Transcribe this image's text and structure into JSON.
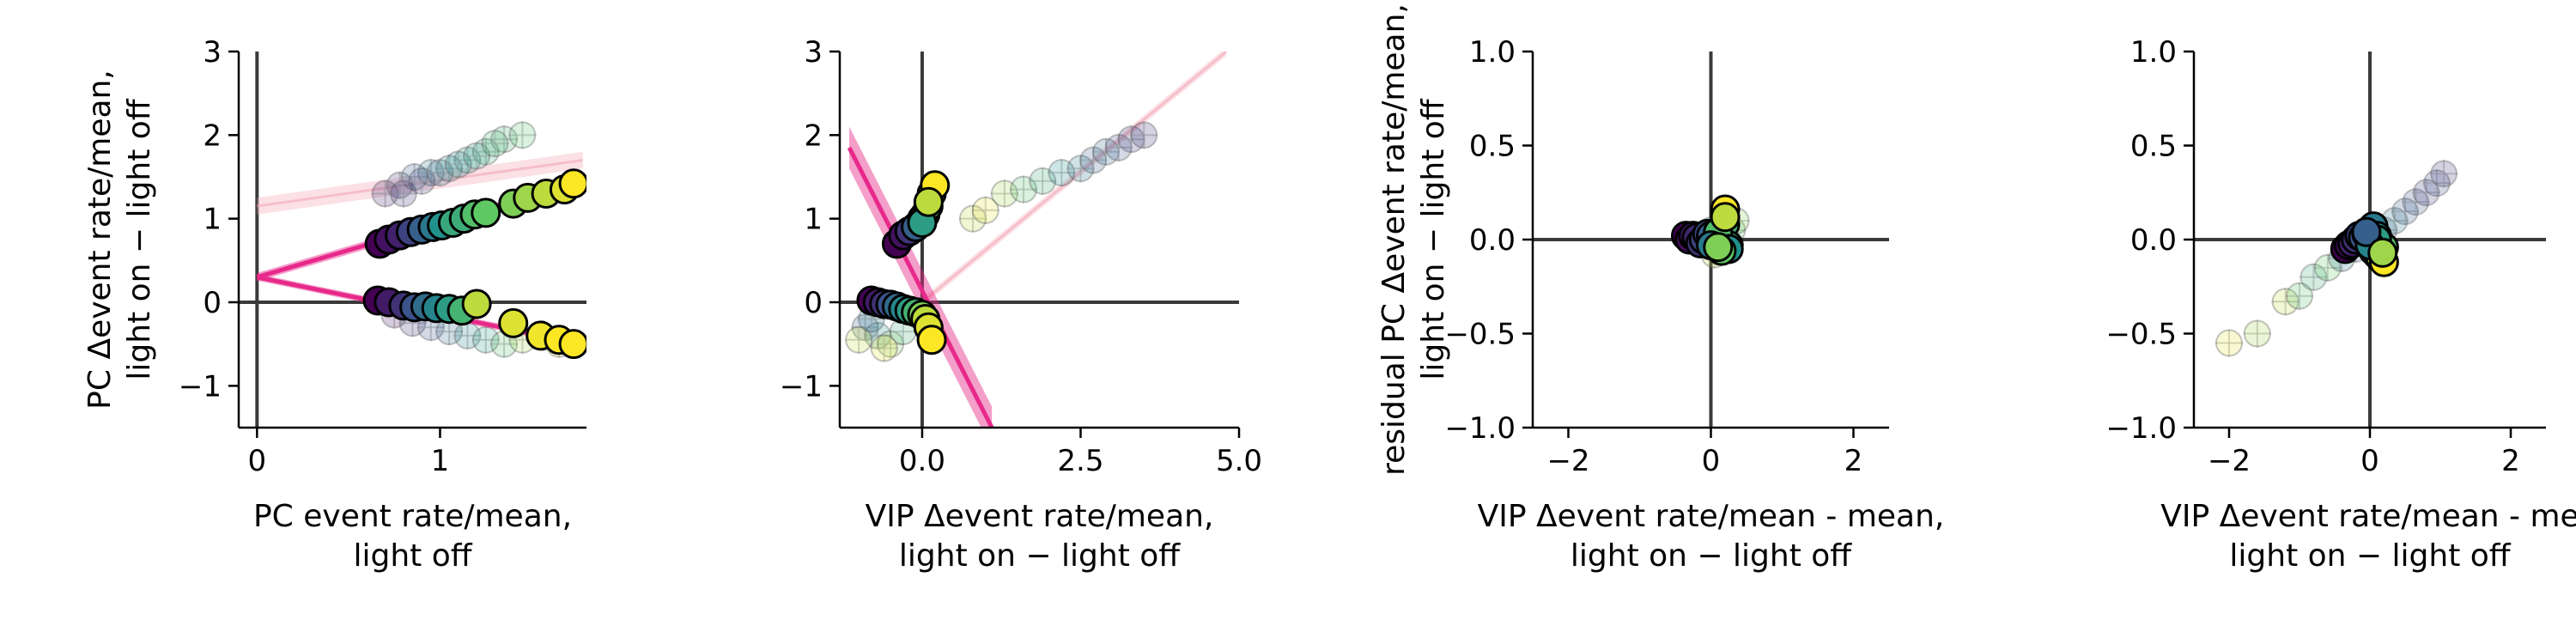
{
  "colors": {
    "fit_line": "#e7298a",
    "fit_band": "#e7298a",
    "faint_fit": "#f4a6b5",
    "axis": "#000000",
    "zero_line": "#3a3a3a",
    "marker_edge": "#000000",
    "error_bar": "#b0b0b0",
    "viridis": [
      "#440154",
      "#3b528b",
      "#21918c",
      "#5ec962",
      "#fde725"
    ]
  },
  "chart_data": [
    {
      "type": "scatter",
      "xlabel": [
        "PC event rate/mean,",
        "light off"
      ],
      "ylabel": [
        "PC  Δevent rate/mean,",
        "light on − light off"
      ],
      "xlim": [
        -0.1,
        1.8
      ],
      "ylim": [
        -1.5,
        3.0
      ],
      "xticks": [
        0,
        1
      ],
      "yticks": [
        -1,
        0,
        1,
        2,
        3
      ],
      "xtick_labels": [
        "0",
        "1"
      ],
      "ytick_labels": [
        "−1",
        "0",
        "1",
        "2",
        "3"
      ],
      "zero_lines": {
        "x": true,
        "y": true
      },
      "fit_lines": [
        {
          "x": [
            0,
            1.78
          ],
          "y": [
            0.3,
            1.45
          ],
          "band": 0.05
        },
        {
          "x": [
            0,
            1.78
          ],
          "y": [
            0.3,
            -0.5
          ],
          "band": 0.04
        }
      ],
      "faint_fits": [
        {
          "x": [
            0,
            1.78
          ],
          "y": [
            1.15,
            1.7
          ],
          "band": 0.1
        }
      ],
      "series": [
        {
          "kind": "highlight",
          "x": [
            0.67,
            0.72,
            0.78,
            0.84,
            0.9,
            0.96,
            1.01,
            1.07,
            1.13,
            1.19,
            1.25,
            1.4,
            1.48,
            1.58,
            1.68,
            1.73
          ],
          "y": [
            0.7,
            0.75,
            0.8,
            0.84,
            0.87,
            0.9,
            0.92,
            0.95,
            1.0,
            1.05,
            1.07,
            1.18,
            1.25,
            1.3,
            1.35,
            1.42
          ],
          "c": [
            0.0,
            0.05,
            0.1,
            0.2,
            0.3,
            0.4,
            0.5,
            0.6,
            0.62,
            0.7,
            0.75,
            0.8,
            0.85,
            0.9,
            0.95,
            1.0
          ]
        },
        {
          "kind": "highlight",
          "x": [
            0.66,
            0.72,
            0.8,
            0.86,
            0.92,
            0.98,
            1.05,
            1.12,
            1.2,
            1.4,
            1.55,
            1.65,
            1.73
          ],
          "y": [
            0.02,
            0.0,
            -0.04,
            -0.06,
            -0.05,
            -0.07,
            -0.08,
            -0.1,
            -0.02,
            -0.25,
            -0.4,
            -0.45,
            -0.5
          ],
          "c": [
            0.0,
            0.08,
            0.15,
            0.25,
            0.35,
            0.45,
            0.55,
            0.65,
            0.9,
            0.95,
            0.98,
            1.0,
            1.0
          ]
        },
        {
          "kind": "faint",
          "x": [
            0.7,
            0.78,
            0.86,
            0.95,
            1.05,
            1.15,
            1.25,
            1.35,
            1.45,
            0.75,
            0.85,
            0.95,
            1.05,
            1.15,
            1.25,
            1.35,
            1.45,
            1.55,
            1.65,
            0.8,
            0.9,
            1.0,
            1.1,
            1.2,
            1.3
          ],
          "y": [
            1.3,
            1.4,
            1.5,
            1.55,
            1.6,
            1.7,
            1.8,
            1.95,
            2.0,
            -0.15,
            -0.25,
            -0.3,
            -0.35,
            -0.4,
            -0.45,
            -0.5,
            -0.45,
            -0.4,
            -0.5,
            1.3,
            1.45,
            1.55,
            1.65,
            1.75,
            1.9
          ],
          "c": [
            0.1,
            0.2,
            0.3,
            0.4,
            0.5,
            0.55,
            0.6,
            0.65,
            0.7,
            0.05,
            0.15,
            0.25,
            0.35,
            0.45,
            0.55,
            0.7,
            0.85,
            0.9,
            0.95,
            0.15,
            0.25,
            0.35,
            0.45,
            0.55,
            0.65
          ]
        }
      ]
    },
    {
      "type": "scatter",
      "xlabel": [
        "VIP Δevent rate/mean,",
        "light on − light off"
      ],
      "ylabel": [],
      "xlim": [
        -1.3,
        5.0
      ],
      "ylim": [
        -1.5,
        3.0
      ],
      "xticks": [
        0.0,
        2.5,
        5.0
      ],
      "yticks": [
        -1,
        0,
        1,
        2,
        3
      ],
      "xtick_labels": [
        "0.0",
        "2.5",
        "5.0"
      ],
      "ytick_labels": [
        "−1",
        "0",
        "1",
        "2",
        "3"
      ],
      "zero_lines": {
        "x": true,
        "y": true
      },
      "fit_lines": [
        {
          "x": [
            -1.15,
            1.1
          ],
          "y": [
            1.85,
            -1.5
          ],
          "band": 0.25
        }
      ],
      "faint_fits": [
        {
          "x": [
            0.0,
            4.8
          ],
          "y": [
            0.0,
            3.0
          ],
          "band": 0.05
        }
      ],
      "series": [
        {
          "kind": "highlight",
          "x": [
            -0.4,
            -0.3,
            -0.2,
            -0.1,
            0.0,
            0.05,
            0.1,
            0.15,
            0.2,
            0.0,
            0.1
          ],
          "y": [
            0.7,
            0.8,
            0.85,
            0.9,
            1.0,
            1.05,
            1.15,
            1.3,
            1.4,
            0.95,
            1.2
          ],
          "c": [
            0.0,
            0.05,
            0.15,
            0.3,
            0.45,
            0.6,
            0.7,
            0.85,
            1.0,
            0.55,
            0.9
          ]
        },
        {
          "kind": "highlight",
          "x": [
            -0.8,
            -0.7,
            -0.6,
            -0.5,
            -0.4,
            -0.3,
            -0.2,
            -0.1,
            0.0,
            0.05,
            0.1,
            0.15
          ],
          "y": [
            0.02,
            0.0,
            -0.02,
            -0.03,
            -0.05,
            -0.08,
            -0.1,
            -0.12,
            -0.15,
            -0.2,
            -0.3,
            -0.45
          ],
          "c": [
            0.0,
            0.08,
            0.15,
            0.25,
            0.35,
            0.45,
            0.55,
            0.65,
            0.8,
            0.9,
            0.95,
            1.0
          ]
        },
        {
          "kind": "faint",
          "x": [
            0.8,
            1.0,
            1.3,
            1.6,
            1.9,
            2.2,
            2.5,
            2.7,
            2.9,
            3.1,
            3.3,
            3.5,
            -0.9,
            -0.7,
            -0.5,
            -0.3,
            -1.0,
            -0.8,
            -0.6
          ],
          "y": [
            1.0,
            1.1,
            1.3,
            1.35,
            1.45,
            1.55,
            1.6,
            1.7,
            1.8,
            1.85,
            1.95,
            2.0,
            -0.3,
            -0.4,
            -0.5,
            -0.35,
            -0.45,
            -0.2,
            -0.55
          ],
          "c": [
            0.9,
            0.95,
            0.85,
            0.7,
            0.6,
            0.5,
            0.4,
            0.3,
            0.35,
            0.25,
            0.2,
            0.15,
            0.3,
            0.5,
            0.8,
            0.6,
            0.9,
            0.4,
            0.95
          ]
        }
      ]
    },
    {
      "type": "scatter",
      "xlabel": [
        "VIP Δevent rate/mean - mean,",
        "light on − light off"
      ],
      "ylabel": [
        "residual PC Δevent rate/mean,",
        "light on − light off"
      ],
      "xlim": [
        -2.5,
        2.5
      ],
      "ylim": [
        -1.0,
        1.0
      ],
      "xticks": [
        -2,
        0,
        2
      ],
      "yticks": [
        -1.0,
        -0.5,
        0.0,
        0.5,
        1.0
      ],
      "xtick_labels": [
        "−2",
        "0",
        "2"
      ],
      "ytick_labels": [
        "−1.0",
        "−0.5",
        "0.0",
        "0.5",
        "1.0"
      ],
      "zero_lines": {
        "x": true,
        "y": true
      },
      "fit_lines": [],
      "faint_fits": [],
      "series": [
        {
          "kind": "faint",
          "x": [
            -0.3,
            -0.2,
            -0.1,
            0.0,
            0.1,
            0.2,
            0.3,
            0.35,
            0.05,
            0.15,
            -0.05,
            0.25
          ],
          "y": [
            0.0,
            0.02,
            -0.03,
            0.05,
            -0.06,
            0.08,
            0.05,
            0.1,
            -0.08,
            0.04,
            0.01,
            -0.04
          ],
          "c": [
            0.1,
            0.2,
            0.3,
            0.4,
            0.5,
            0.6,
            0.7,
            0.8,
            0.9,
            0.45,
            0.35,
            0.65
          ]
        },
        {
          "kind": "highlight",
          "x": [
            -0.35,
            -0.3,
            -0.25,
            -0.2,
            -0.15,
            -0.1,
            -0.05,
            0.0,
            0.05,
            0.1,
            0.15,
            0.2,
            0.25,
            0.2,
            0.1,
            0.2,
            0.25,
            0.15,
            0.0,
            0.1
          ],
          "y": [
            0.02,
            0.0,
            0.02,
            0.01,
            -0.02,
            0.0,
            0.03,
            0.02,
            -0.02,
            0.0,
            0.05,
            0.08,
            -0.03,
            0.16,
            0.04,
            0.12,
            -0.05,
            -0.06,
            -0.03,
            -0.04
          ],
          "c": [
            0.0,
            0.04,
            0.08,
            0.12,
            0.16,
            0.2,
            0.25,
            0.3,
            0.35,
            0.45,
            0.55,
            0.65,
            0.6,
            1.0,
            0.7,
            0.9,
            0.5,
            0.75,
            0.4,
            0.8
          ]
        }
      ]
    },
    {
      "type": "scatter",
      "xlabel": [
        "VIP Δevent rate/mean - me",
        "light on − light off"
      ],
      "ylabel": [],
      "xlim": [
        -2.5,
        2.5
      ],
      "ylim": [
        -1.0,
        1.0
      ],
      "xticks": [
        -2,
        0,
        2
      ],
      "yticks": [
        -1.0,
        -0.5,
        0.0,
        0.5,
        1.0
      ],
      "xtick_labels": [
        "−2",
        "0",
        "2"
      ],
      "ytick_labels": [
        "−1.0",
        "−0.5",
        "0.0",
        "0.5",
        "1.0"
      ],
      "zero_lines": {
        "x": true,
        "y": true
      },
      "fit_lines": [],
      "faint_fits": [],
      "series": [
        {
          "kind": "faint",
          "x": [
            -2.0,
            -1.6,
            -1.2,
            -1.0,
            -0.8,
            -0.6,
            -0.4,
            -0.2,
            0.0,
            0.2,
            0.35,
            0.5,
            0.65,
            0.8,
            0.95,
            1.05
          ],
          "y": [
            -0.55,
            -0.5,
            -0.33,
            -0.3,
            -0.2,
            -0.15,
            -0.1,
            -0.05,
            0.0,
            0.05,
            0.1,
            0.15,
            0.2,
            0.25,
            0.3,
            0.35
          ],
          "c": [
            0.95,
            0.85,
            0.9,
            0.7,
            0.6,
            0.75,
            0.4,
            0.3,
            0.5,
            0.35,
            0.4,
            0.3,
            0.25,
            0.2,
            0.25,
            0.15
          ]
        },
        {
          "kind": "highlight",
          "x": [
            -0.35,
            -0.3,
            -0.25,
            -0.2,
            -0.15,
            -0.1,
            -0.05,
            0.0,
            0.05,
            0.1,
            0.15,
            0.2,
            0.05,
            0.1,
            0.15,
            0.2,
            0.1,
            0.0,
            -0.05,
            0.18
          ],
          "y": [
            -0.05,
            -0.03,
            -0.02,
            0.0,
            0.02,
            0.01,
            0.03,
            0.05,
            0.07,
            0.02,
            -0.02,
            -0.04,
            -0.06,
            -0.08,
            -0.1,
            -0.12,
            0.0,
            -0.03,
            0.04,
            -0.07
          ],
          "c": [
            0.0,
            0.05,
            0.1,
            0.15,
            0.2,
            0.25,
            0.3,
            0.35,
            0.4,
            0.5,
            0.6,
            0.7,
            0.65,
            0.8,
            0.9,
            1.0,
            0.55,
            0.45,
            0.3,
            0.85
          ]
        }
      ]
    }
  ]
}
